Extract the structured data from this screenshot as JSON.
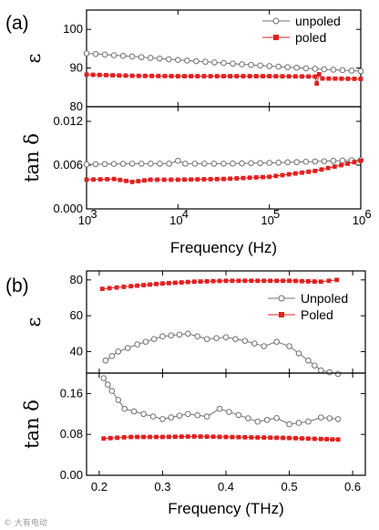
{
  "chart_data": [
    {
      "panel": "(a)",
      "type": "line",
      "x_scale": "log",
      "xlim": [
        1000,
        1000000
      ],
      "xlabel": "Frequency (Hz)",
      "x_tick_labels": [
        "10",
        "10",
        "10",
        "10"
      ],
      "x_tick_exponents": [
        "3",
        "4",
        "5",
        "6"
      ],
      "subplots": [
        {
          "ylabel": "ε",
          "ylim": [
            80,
            105
          ],
          "y_tick_labels": [
            "80",
            "90",
            "100"
          ],
          "series": [
            {
              "name": "unpoled",
              "marker": "open-circle",
              "color": "#707070",
              "x": [
                1000,
                3160,
                10000,
                31600,
                100000,
                316000,
                1000000
              ],
              "y": [
                93.8,
                93.0,
                92.1,
                91.3,
                90.5,
                89.8,
                89.2
              ]
            },
            {
              "name": "poled",
              "marker": "filled-square",
              "color": "#e02020",
              "x": [
                1000,
                3160,
                10000,
                31600,
                100000,
                316000,
                330000,
                350000,
                380000,
                1000000
              ],
              "y": [
                88.3,
                88.0,
                87.9,
                87.9,
                87.9,
                87.8,
                86.0,
                88.4,
                87.3,
                87.2
              ]
            }
          ]
        },
        {
          "ylabel": "tan δ",
          "ylim": [
            0.0,
            0.014
          ],
          "y_tick_labels": [
            "0.000",
            "0.006",
            "0.012"
          ],
          "series": [
            {
              "name": "unpoled",
              "marker": "open-circle",
              "color": "#707070",
              "x": [
                1000,
                3160,
                8000,
                10000,
                12000,
                31600,
                100000,
                316000,
                1000000
              ],
              "y": [
                0.0061,
                0.0062,
                0.0062,
                0.0066,
                0.0062,
                0.0062,
                0.0063,
                0.0065,
                0.0067
              ]
            },
            {
              "name": "poled",
              "marker": "filled-square",
              "color": "#e02020",
              "x": [
                1000,
                2000,
                3160,
                5000,
                10000,
                31600,
                100000,
                316000,
                1000000
              ],
              "y": [
                0.004,
                0.0041,
                0.0037,
                0.004,
                0.004,
                0.0041,
                0.0044,
                0.0052,
                0.0066
              ]
            }
          ]
        }
      ]
    },
    {
      "panel": "(b)",
      "type": "line",
      "x_scale": "linear",
      "xlim": [
        0.18,
        0.62
      ],
      "xlabel": "Frequency (THz)",
      "x_tick_labels": [
        "0.2",
        "0.3",
        "0.4",
        "0.5",
        "0.6"
      ],
      "subplots": [
        {
          "ylabel": "ε",
          "ylim": [
            28,
            85
          ],
          "y_tick_labels": [
            "40",
            "60",
            "80"
          ],
          "series": [
            {
              "name": "Unpoled",
              "marker": "open-circle",
              "color": "#707070",
              "x": [
                0.21,
                0.23,
                0.26,
                0.3,
                0.34,
                0.37,
                0.4,
                0.43,
                0.46,
                0.48,
                0.5,
                0.53,
                0.55,
                0.577
              ],
              "y": [
                35,
                40,
                44,
                48.5,
                50,
                47,
                48,
                46,
                43,
                45.5,
                43,
                35,
                29.5,
                27.5
              ]
            },
            {
              "name": "Poled",
              "marker": "filled-square",
              "color": "#e02020",
              "x": [
                0.205,
                0.25,
                0.3,
                0.35,
                0.4,
                0.45,
                0.5,
                0.55,
                0.575
              ],
              "y": [
                75,
                76.5,
                78,
                79,
                79.5,
                79.5,
                79.5,
                79,
                80
              ]
            }
          ]
        },
        {
          "ylabel": "tan δ",
          "ylim": [
            0.0,
            0.2
          ],
          "y_tick_labels": [
            "0.00",
            "0.08",
            "0.16"
          ],
          "series": [
            {
              "name": "Unpoled",
              "marker": "open-circle",
              "color": "#707070",
              "x": [
                0.207,
                0.22,
                0.24,
                0.27,
                0.3,
                0.34,
                0.37,
                0.39,
                0.42,
                0.45,
                0.48,
                0.5,
                0.53,
                0.55,
                0.577
              ],
              "y": [
                0.19,
                0.165,
                0.13,
                0.12,
                0.11,
                0.12,
                0.115,
                0.13,
                0.118,
                0.105,
                0.112,
                0.1,
                0.105,
                0.113,
                0.11
              ]
            },
            {
              "name": "Poled",
              "marker": "filled-square",
              "color": "#e02020",
              "x": [
                0.207,
                0.25,
                0.3,
                0.35,
                0.4,
                0.45,
                0.5,
                0.55,
                0.577
              ],
              "y": [
                0.072,
                0.075,
                0.075,
                0.076,
                0.075,
                0.074,
                0.073,
                0.071,
                0.07
              ]
            }
          ]
        }
      ]
    }
  ],
  "watermark": "© 大有电动"
}
